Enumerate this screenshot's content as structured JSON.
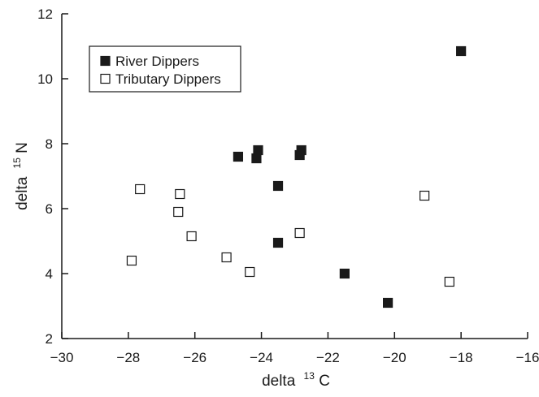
{
  "chart_data": {
    "type": "scatter",
    "title": "",
    "xlabel": "delta",
    "xlabel_sup": "13",
    "xlabel_suffix": "C",
    "ylabel": "delta",
    "ylabel_sup": "15",
    "ylabel_suffix": "N",
    "xlim": [
      -30,
      -16
    ],
    "ylim": [
      2,
      12
    ],
    "xticks": [
      -30,
      -28,
      -26,
      -24,
      -22,
      -20,
      -18,
      -16
    ],
    "xtick_labels": [
      "−30",
      "−28",
      "−26",
      "−24",
      "−22",
      "−20",
      "−18",
      "−16"
    ],
    "yticks": [
      2,
      4,
      6,
      8,
      10,
      12
    ],
    "ytick_labels": [
      "2",
      "4",
      "6",
      "8",
      "10",
      "12"
    ],
    "grid": false,
    "legend_position": "top-left",
    "series": [
      {
        "name": "River Dippers",
        "marker": "filled-square",
        "color": "#1a1a1a",
        "points": [
          {
            "x": -24.7,
            "y": 7.6
          },
          {
            "x": -24.1,
            "y": 7.8
          },
          {
            "x": -24.15,
            "y": 7.55
          },
          {
            "x": -22.8,
            "y": 7.8
          },
          {
            "x": -22.85,
            "y": 7.65
          },
          {
            "x": -23.5,
            "y": 6.7
          },
          {
            "x": -23.5,
            "y": 4.95
          },
          {
            "x": -21.5,
            "y": 4.0
          },
          {
            "x": -20.2,
            "y": 3.1
          },
          {
            "x": -18.0,
            "y": 10.85
          }
        ]
      },
      {
        "name": "Tributary Dippers",
        "marker": "open-square",
        "color": "#1a1a1a",
        "points": [
          {
            "x": -27.65,
            "y": 6.6
          },
          {
            "x": -26.45,
            "y": 6.45
          },
          {
            "x": -26.5,
            "y": 5.9
          },
          {
            "x": -26.1,
            "y": 5.15
          },
          {
            "x": -27.9,
            "y": 4.4
          },
          {
            "x": -25.05,
            "y": 4.5
          },
          {
            "x": -24.35,
            "y": 4.05
          },
          {
            "x": -22.85,
            "y": 5.25
          },
          {
            "x": -19.1,
            "y": 6.4
          },
          {
            "x": -18.35,
            "y": 3.75
          }
        ]
      }
    ]
  }
}
